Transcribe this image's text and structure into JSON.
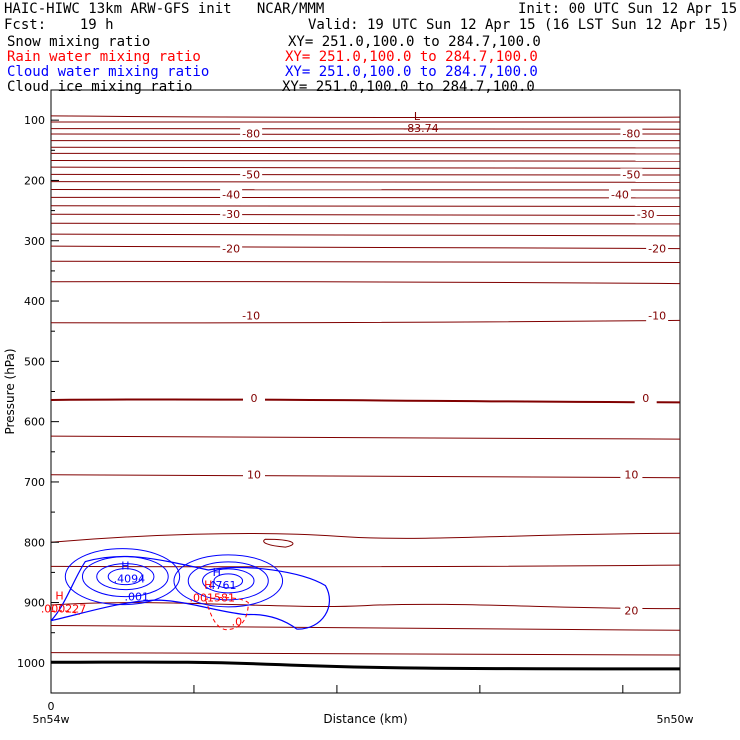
{
  "header": {
    "title": "HAIC-HIWC 13km ARW-GFS init   NCAR/MMM",
    "init": "Init: 00 UTC Sun 12 Apr 15",
    "fcst": "Fcst:    19 h",
    "valid": "Valid: 19 UTC Sun 12 Apr 15 (16 LST Sun 12 Apr 15)"
  },
  "legend": [
    {
      "label": "Snow mixing ratio",
      "xy": "XY= 251.0,100.0 to 284.7,100.0",
      "color": "#000000"
    },
    {
      "label": "Rain water mixing ratio",
      "xy": "XY= 251.0,100.0 to 284.7,100.0",
      "color": "#ff0000"
    },
    {
      "label": "Cloud water mixing ratio",
      "xy": "XY= 251.0,100.0 to 284.7,100.0",
      "color": "#0000ff"
    },
    {
      "label": "Cloud ice mixing ratio",
      "xy": "XY= 251.0,100.0 to 284.7,100.0",
      "color": "#000000"
    }
  ],
  "chart_data": {
    "type": "contour",
    "ylabel": "Pressure (hPa)",
    "xlabel": "Distance (km)",
    "y_ticks": [
      100,
      200,
      300,
      400,
      500,
      600,
      700,
      800,
      900,
      1000
    ],
    "y_range": [
      50,
      1050
    ],
    "x_range": [
      0,
      22
    ],
    "x_ticks": [
      0,
      5,
      10,
      15,
      20
    ],
    "x_tick_labels": [
      {
        "x": 0,
        "label": "0"
      }
    ],
    "x_end_labels": {
      "left": "5n54w",
      "right": "5n50w"
    },
    "temperature_color": "#800000",
    "isotherm_labels": [
      {
        "label": "-80",
        "p": 122,
        "x": [
          7,
          20.3
        ]
      },
      {
        "label": "-50",
        "p": 190,
        "x": [
          7,
          20.3
        ]
      },
      {
        "label": "-40",
        "p": 223,
        "x": [
          6.3,
          19.9
        ]
      },
      {
        "label": "-30",
        "p": 256,
        "x": [
          6.3,
          20.8
        ]
      },
      {
        "label": "-20",
        "p": 313,
        "x": [
          6.3,
          21.2
        ]
      },
      {
        "label": "-10",
        "p": 424,
        "x": [
          7,
          21.2
        ]
      },
      {
        "label": "0",
        "p": 561,
        "x": [
          7.1,
          20.8
        ]
      },
      {
        "label": "10",
        "p": 688,
        "x": [
          7.1,
          20.3
        ]
      },
      {
        "label": "20",
        "p": 913,
        "x": [
          20.3
        ]
      }
    ],
    "low_label": "L",
    "low_value": "-83.74",
    "low_position": {
      "x": 12.8,
      "p": 93
    },
    "maxima": [
      {
        "marker": "H",
        "value": ".4094",
        "x": 2.6,
        "p": 855,
        "color": "#0000ff"
      },
      {
        "marker": "H",
        "value": ".4761",
        "x": 5.8,
        "p": 866,
        "color": "#0000ff"
      },
      {
        "marker": "H",
        "value": ".000227",
        "x": 0.3,
        "p": 905,
        "color": "#ff0000"
      },
      {
        "marker": "H",
        "value": ".001581",
        "x": 5.5,
        "p": 887,
        "color": "#ff0000"
      }
    ],
    "contour_labels": [
      {
        "label": ".001",
        "x": 3.0,
        "p": 897,
        "color": "#0000ff"
      },
      {
        "label": ".0",
        "x": 6.5,
        "p": 938,
        "color": "#ff0000"
      }
    ],
    "terrain_color": "#000000"
  }
}
